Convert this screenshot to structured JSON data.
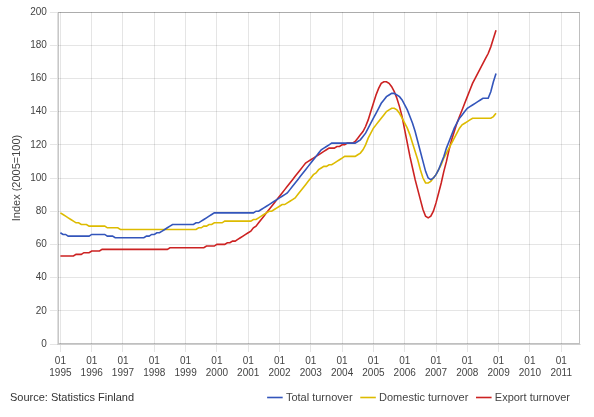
{
  "chart_data": {
    "type": "line",
    "y_label": "Index (2005=100)",
    "annotations": [
      "Source: Statistics Finland"
    ],
    "legend": "lower right",
    "grid": true,
    "xlim": [
      1994.92,
      2011.6
    ],
    "xticks": [
      {
        "value": 1995,
        "label": "01\n1995"
      },
      {
        "value": 1996,
        "label": "01\n1996"
      },
      {
        "value": 1997,
        "label": "01\n1997"
      },
      {
        "value": 1998,
        "label": "01\n1998"
      },
      {
        "value": 1999,
        "label": "01\n1999"
      },
      {
        "value": 2000,
        "label": "01\n2000"
      },
      {
        "value": 2001,
        "label": "01\n2001"
      },
      {
        "value": 2002,
        "label": "01\n2002"
      },
      {
        "value": 2003,
        "label": "01\n2003"
      },
      {
        "value": 2004,
        "label": "01\n2004"
      },
      {
        "value": 2005,
        "label": "01\n2005"
      },
      {
        "value": 2006,
        "label": "01\n2006"
      },
      {
        "value": 2007,
        "label": "01\n2007"
      },
      {
        "value": 2008,
        "label": "01\n2008"
      },
      {
        "value": 2009,
        "label": "01\n2009"
      },
      {
        "value": 2010,
        "label": "01\n2010"
      },
      {
        "value": 2011,
        "label": "01\n2011"
      }
    ],
    "ylim": [
      0,
      200
    ],
    "yticks": [
      0,
      20,
      40,
      60,
      80,
      100,
      120,
      140,
      160,
      180,
      200
    ],
    "x": [
      1995,
      1995.0833,
      1995.1667,
      1995.25,
      1995.3333,
      1995.4167,
      1995.5,
      1995.5833,
      1995.6667,
      1995.75,
      1995.8333,
      1995.9167,
      1996,
      1996.0833,
      1996.1667,
      1996.25,
      1996.3333,
      1996.4167,
      1996.5,
      1996.5833,
      1996.6667,
      1996.75,
      1996.8333,
      1996.9167,
      1997,
      1997.0833,
      1997.1667,
      1997.25,
      1997.3333,
      1997.4167,
      1997.5,
      1997.5833,
      1997.6667,
      1997.75,
      1997.8333,
      1997.9167,
      1998,
      1998.0833,
      1998.1667,
      1998.25,
      1998.3333,
      1998.4167,
      1998.5,
      1998.5833,
      1998.6667,
      1998.75,
      1998.8333,
      1998.9167,
      1999,
      1999.0833,
      1999.1667,
      1999.25,
      1999.3333,
      1999.4167,
      1999.5,
      1999.5833,
      1999.6667,
      1999.75,
      1999.8333,
      1999.9167,
      2000,
      2000.0833,
      2000.1667,
      2000.25,
      2000.3333,
      2000.4167,
      2000.5,
      2000.5833,
      2000.6667,
      2000.75,
      2000.8333,
      2000.9167,
      2001,
      2001.0833,
      2001.1667,
      2001.25,
      2001.3333,
      2001.4167,
      2001.5,
      2001.5833,
      2001.6667,
      2001.75,
      2001.8333,
      2001.9167,
      2002,
      2002.0833,
      2002.1667,
      2002.25,
      2002.3333,
      2002.4167,
      2002.5,
      2002.5833,
      2002.6667,
      2002.75,
      2002.8333,
      2002.9167,
      2003,
      2003.0833,
      2003.1667,
      2003.25,
      2003.3333,
      2003.4167,
      2003.5,
      2003.5833,
      2003.6667,
      2003.75,
      2003.8333,
      2003.9167,
      2004,
      2004.0833,
      2004.1667,
      2004.25,
      2004.3333,
      2004.4167,
      2004.5,
      2004.5833,
      2004.6667,
      2004.75,
      2004.8333,
      2004.9167,
      2005,
      2005.0833,
      2005.1667,
      2005.25,
      2005.3333,
      2005.4167,
      2005.5,
      2005.5833,
      2005.6667,
      2005.75,
      2005.8333,
      2005.9167,
      2006,
      2006.0833,
      2006.1667,
      2006.25,
      2006.3333,
      2006.4167,
      2006.5,
      2006.5833,
      2006.6667,
      2006.75,
      2006.8333,
      2006.9167,
      2007,
      2007.0833,
      2007.1667,
      2007.25,
      2007.3333,
      2007.4167,
      2007.5,
      2007.5833,
      2007.6667,
      2007.75,
      2007.8333,
      2007.9167,
      2008,
      2008.0833,
      2008.1667,
      2008.25,
      2008.3333,
      2008.4167,
      2008.5,
      2008.5833,
      2008.6667,
      2008.75,
      2008.8333,
      2008.9167
    ],
    "series": [
      {
        "name": "Total turnover",
        "color": "#3355bb",
        "values": [
          67,
          66,
          66,
          65,
          65,
          65,
          65,
          65,
          65,
          65,
          65,
          65,
          66,
          66,
          66,
          66,
          66,
          66,
          65,
          65,
          65,
          64,
          64,
          64,
          64,
          64,
          64,
          64,
          64,
          64,
          64,
          64,
          64,
          65,
          65,
          66,
          66,
          67,
          67,
          68,
          69,
          70,
          71,
          72,
          72,
          72,
          72,
          72,
          72,
          72,
          72,
          72,
          73,
          73,
          74,
          75,
          76,
          77,
          78,
          79,
          79,
          79,
          79,
          79,
          79,
          79,
          79,
          79,
          79,
          79,
          79,
          79,
          79,
          79,
          79,
          80,
          80,
          81,
          82,
          83,
          84,
          85,
          86,
          87,
          88,
          89,
          90,
          91,
          93,
          95,
          97,
          99,
          101,
          103,
          105,
          107,
          109,
          111,
          113,
          115,
          117,
          118,
          119,
          120,
          121,
          121,
          121,
          121,
          121,
          121,
          121,
          121,
          121,
          121,
          122,
          123,
          125,
          127,
          130,
          133,
          136,
          139,
          142,
          145,
          147,
          149,
          150,
          151,
          151,
          150,
          149,
          147,
          144,
          141,
          137,
          133,
          128,
          122,
          116,
          110,
          104,
          100,
          99,
          100,
          102,
          105,
          109,
          113,
          118,
          122,
          126,
          130,
          133,
          136,
          138,
          140,
          142,
          143,
          144,
          145,
          146,
          147,
          148,
          148,
          148,
          152,
          158,
          163
        ]
      },
      {
        "name": "Domestic turnover",
        "color": "#ddbb00",
        "values": [
          79,
          78,
          77,
          76,
          75,
          74,
          73,
          73,
          72,
          72,
          72,
          71,
          71,
          71,
          71,
          71,
          71,
          71,
          70,
          70,
          70,
          70,
          70,
          69,
          69,
          69,
          69,
          69,
          69,
          69,
          69,
          69,
          69,
          69,
          69,
          69,
          69,
          69,
          69,
          69,
          69,
          69,
          69,
          69,
          69,
          69,
          69,
          69,
          69,
          69,
          69,
          69,
          69,
          70,
          70,
          71,
          71,
          72,
          72,
          73,
          73,
          73,
          73,
          74,
          74,
          74,
          74,
          74,
          74,
          74,
          74,
          74,
          74,
          74,
          75,
          75,
          76,
          77,
          78,
          79,
          80,
          80,
          81,
          82,
          83,
          84,
          84,
          85,
          86,
          87,
          88,
          90,
          92,
          94,
          96,
          98,
          100,
          102,
          103,
          105,
          106,
          107,
          107,
          108,
          108,
          109,
          110,
          111,
          112,
          113,
          113,
          113,
          113,
          113,
          114,
          115,
          117,
          120,
          124,
          127,
          130,
          132,
          134,
          136,
          138,
          140,
          141,
          142,
          142,
          141,
          139,
          136,
          133,
          130,
          126,
          121,
          116,
          111,
          105,
          100,
          97,
          97,
          98,
          100,
          102,
          105,
          108,
          112,
          115,
          118,
          121,
          124,
          127,
          130,
          132,
          133,
          134,
          135,
          136,
          136,
          136,
          136,
          136,
          136,
          136,
          136,
          137,
          139
        ]
      },
      {
        "name": "Export turnover",
        "color": "#cc2222",
        "values": [
          53,
          53,
          53,
          53,
          53,
          53,
          54,
          54,
          54,
          55,
          55,
          55,
          56,
          56,
          56,
          56,
          57,
          57,
          57,
          57,
          57,
          57,
          57,
          57,
          57,
          57,
          57,
          57,
          57,
          57,
          57,
          57,
          57,
          57,
          57,
          57,
          57,
          57,
          57,
          57,
          57,
          57,
          58,
          58,
          58,
          58,
          58,
          58,
          58,
          58,
          58,
          58,
          58,
          58,
          58,
          58,
          59,
          59,
          59,
          59,
          60,
          60,
          60,
          60,
          61,
          61,
          62,
          62,
          63,
          64,
          65,
          66,
          67,
          68,
          70,
          71,
          73,
          75,
          77,
          79,
          81,
          83,
          85,
          87,
          89,
          91,
          93,
          95,
          97,
          99,
          101,
          103,
          105,
          107,
          109,
          110,
          111,
          112,
          113,
          114,
          115,
          116,
          117,
          118,
          118,
          118,
          119,
          119,
          120,
          120,
          121,
          121,
          121,
          122,
          124,
          126,
          128,
          131,
          135,
          140,
          145,
          150,
          154,
          157,
          158,
          158,
          157,
          155,
          152,
          148,
          143,
          137,
          129,
          121,
          113,
          106,
          99,
          93,
          87,
          81,
          77,
          76,
          77,
          80,
          85,
          91,
          97,
          104,
          110,
          117,
          123,
          128,
          133,
          137,
          141,
          145,
          149,
          153,
          157,
          160,
          163,
          166,
          169,
          172,
          175,
          179,
          184,
          189
        ]
      }
    ]
  }
}
